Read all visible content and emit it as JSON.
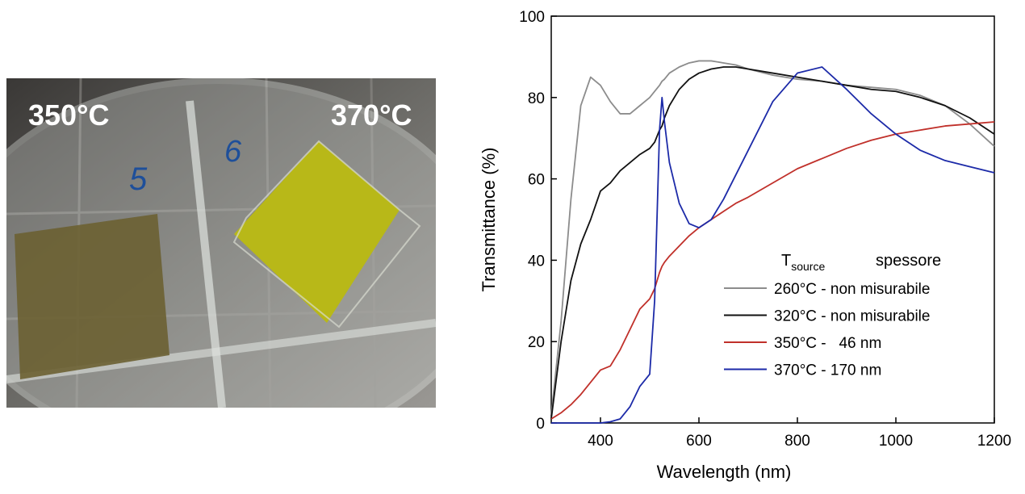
{
  "photo": {
    "labels": [
      "350°C",
      "370°C"
    ],
    "handwriting": [
      "5",
      "6"
    ]
  },
  "chart_data": {
    "type": "line",
    "x_label": "Wavelength (nm)",
    "y_label": "Transmittance (%)",
    "legend_title": {
      "symbol": "T",
      "subscript": "source",
      "column": "spessore"
    },
    "x": [
      300,
      320,
      340,
      360,
      380,
      400,
      420,
      440,
      460,
      480,
      500,
      510,
      520,
      525,
      530,
      540,
      560,
      580,
      600,
      625,
      650,
      675,
      700,
      750,
      800,
      850,
      900,
      950,
      1000,
      1050,
      1100,
      1150,
      1200
    ],
    "series": [
      {
        "name": "260°C - non misurabile",
        "color": "#8c8c8c",
        "values": [
          2,
          25,
          55,
          78,
          85,
          83,
          79,
          76,
          76,
          78,
          80,
          81.5,
          83,
          84,
          84.5,
          86,
          87.5,
          88.5,
          89,
          89,
          88.5,
          88,
          87,
          85.5,
          84.5,
          84,
          83,
          82.5,
          82,
          80.5,
          78,
          73.5,
          68
        ]
      },
      {
        "name": "320°C - non misurabile",
        "color": "#111111",
        "values": [
          1,
          20,
          35,
          44,
          50,
          57,
          59,
          62,
          64,
          66,
          67.5,
          69,
          72,
          73,
          75,
          78,
          82,
          84.5,
          86,
          87,
          87.5,
          87.5,
          87,
          86,
          85,
          84,
          83,
          82,
          81.5,
          80,
          78,
          75,
          71
        ]
      },
      {
        "name": "350°C -   46 nm",
        "color": "#c0302a",
        "values": [
          1,
          2.5,
          4.5,
          7,
          10,
          13,
          14,
          18,
          23,
          28,
          30.5,
          33,
          37,
          38.5,
          39.5,
          41,
          43.5,
          46,
          48,
          50,
          52,
          54,
          55.5,
          59,
          62.5,
          65,
          67.5,
          69.5,
          71,
          72,
          73,
          73.5,
          74
        ]
      },
      {
        "name": "370°C - 170 nm",
        "color": "#1c2aa8",
        "values": [
          0,
          0,
          0,
          0,
          0,
          0,
          0.3,
          1,
          4,
          9,
          12,
          30,
          72,
          80,
          74,
          64,
          54,
          49,
          48,
          50,
          55,
          61,
          67,
          79,
          86,
          87.5,
          82,
          76,
          71,
          67,
          64.5,
          63,
          61.5
        ]
      }
    ],
    "xlim": [
      300,
      1200
    ],
    "xticks": [
      400,
      600,
      800,
      1000,
      1200
    ],
    "ylim": [
      0,
      100
    ],
    "yticks": [
      0,
      20,
      40,
      60,
      80,
      100
    ],
    "legend": "lower right",
    "grid": false
  }
}
